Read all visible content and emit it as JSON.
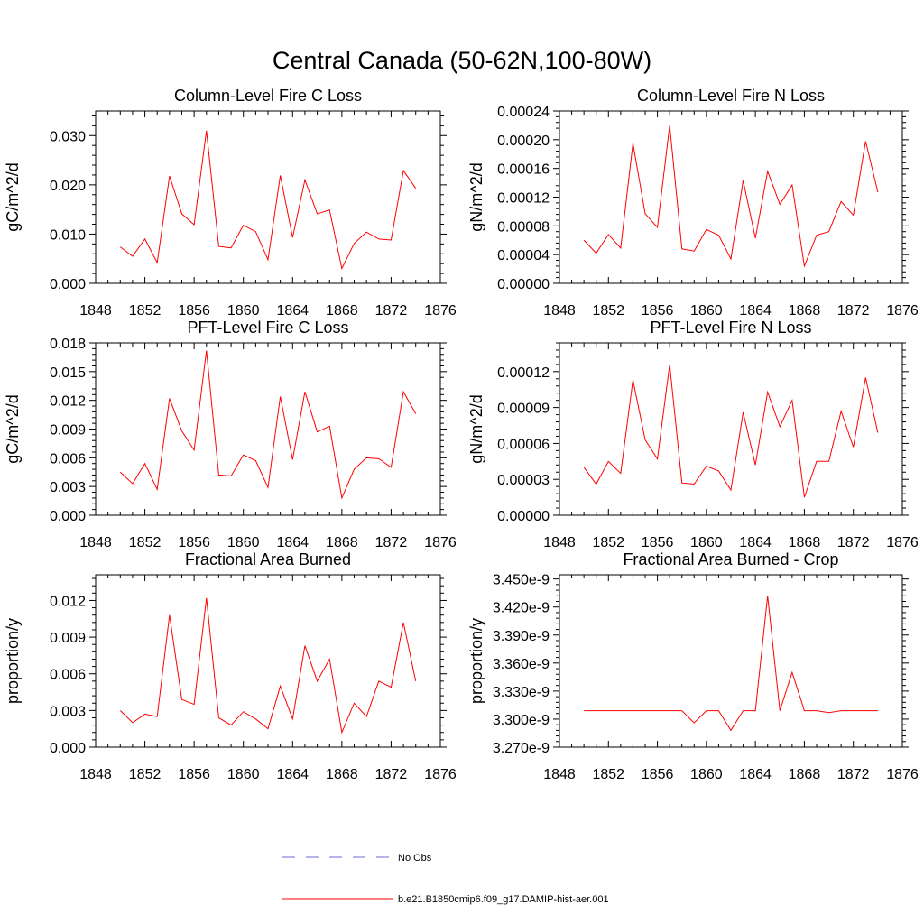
{
  "figure": {
    "title": "Central Canada (50-62N,100-80W)"
  },
  "colors": {
    "model": "#ff0000",
    "obs": "#6a6acd"
  },
  "legend": {
    "obs_label": "No Obs",
    "model_label": "b.e21.B1850cmip6.f09_g17.DAMIP-hist-aer.001"
  },
  "chart_data": [
    {
      "type": "line",
      "title": "Column-Level Fire C Loss",
      "ylabel": "gC/m^2/d",
      "xlim": [
        1848,
        1876
      ],
      "ylim": [
        0,
        0.035
      ],
      "xticks": [
        1848,
        1852,
        1856,
        1860,
        1864,
        1868,
        1872,
        1876
      ],
      "xtick_labels": [
        "1848",
        "1852",
        "1856",
        "1860",
        "1864",
        "1868",
        "1872",
        "1876"
      ],
      "yticks": [
        0,
        0.01,
        0.02,
        0.03
      ],
      "ytick_labels": [
        "0.000",
        "0.010",
        "0.020",
        "0.030"
      ],
      "x": [
        1850,
        1851,
        1852,
        1853,
        1854,
        1855,
        1856,
        1857,
        1858,
        1859,
        1860,
        1861,
        1862,
        1863,
        1864,
        1865,
        1866,
        1867,
        1868,
        1869,
        1870,
        1871,
        1872,
        1873,
        1874
      ],
      "series": [
        {
          "values": [
            0.0074,
            0.0055,
            0.009,
            0.0042,
            0.0218,
            0.0141,
            0.0119,
            0.031,
            0.0075,
            0.0072,
            0.0118,
            0.0105,
            0.0048,
            0.0219,
            0.0093,
            0.021,
            0.0141,
            0.0149,
            0.003,
            0.0081,
            0.0104,
            0.009,
            0.0088,
            0.0229,
            0.0193
          ]
        }
      ]
    },
    {
      "type": "line",
      "title": "Column-Level Fire N Loss",
      "ylabel": "gN/m^2/d",
      "xlim": [
        1848,
        1876
      ],
      "ylim": [
        0,
        0.00024
      ],
      "xticks": [
        1848,
        1852,
        1856,
        1860,
        1864,
        1868,
        1872,
        1876
      ],
      "xtick_labels": [
        "1848",
        "1852",
        "1856",
        "1860",
        "1864",
        "1868",
        "1872",
        "1876"
      ],
      "yticks": [
        0,
        4e-05,
        8e-05,
        0.00012,
        0.00016,
        0.0002,
        0.00024
      ],
      "ytick_labels": [
        "0.00000",
        "0.00004",
        "0.00008",
        "0.00012",
        "0.00016",
        "0.00020",
        "0.00024"
      ],
      "x": [
        1850,
        1851,
        1852,
        1853,
        1854,
        1855,
        1856,
        1857,
        1858,
        1859,
        1860,
        1861,
        1862,
        1863,
        1864,
        1865,
        1866,
        1867,
        1868,
        1869,
        1870,
        1871,
        1872,
        1873,
        1874
      ],
      "series": [
        {
          "values": [
            6e-05,
            4.2e-05,
            6.8e-05,
            4.9e-05,
            0.000195,
            9.7e-05,
            7.8e-05,
            0.00022,
            4.8e-05,
            4.5e-05,
            7.5e-05,
            6.7e-05,
            3.4e-05,
            0.000143,
            6.3e-05,
            0.000156,
            0.00011,
            0.000137,
            2.4e-05,
            6.7e-05,
            7.2e-05,
            0.000114,
            9.5e-05,
            0.000198,
            0.000127
          ]
        }
      ]
    },
    {
      "type": "line",
      "title": "PFT-Level Fire C Loss",
      "ylabel": "gC/m^2/d",
      "xlim": [
        1848,
        1876
      ],
      "ylim": [
        0,
        0.018
      ],
      "xticks": [
        1848,
        1852,
        1856,
        1860,
        1864,
        1868,
        1872,
        1876
      ],
      "xtick_labels": [
        "1848",
        "1852",
        "1856",
        "1860",
        "1864",
        "1868",
        "1872",
        "1876"
      ],
      "yticks": [
        0,
        0.003,
        0.006,
        0.009,
        0.012,
        0.015,
        0.018
      ],
      "ytick_labels": [
        "0.000",
        "0.003",
        "0.006",
        "0.009",
        "0.012",
        "0.015",
        "0.018"
      ],
      "x": [
        1850,
        1851,
        1852,
        1853,
        1854,
        1855,
        1856,
        1857,
        1858,
        1859,
        1860,
        1861,
        1862,
        1863,
        1864,
        1865,
        1866,
        1867,
        1868,
        1869,
        1870,
        1871,
        1872,
        1873,
        1874
      ],
      "series": [
        {
          "values": [
            0.0045,
            0.0033,
            0.0054,
            0.0027,
            0.0122,
            0.0088,
            0.0068,
            0.0172,
            0.0042,
            0.0041,
            0.0063,
            0.0057,
            0.0029,
            0.0124,
            0.0058,
            0.0129,
            0.0087,
            0.0093,
            0.0018,
            0.0048,
            0.006,
            0.0059,
            0.005,
            0.0129,
            0.0106
          ]
        }
      ]
    },
    {
      "type": "line",
      "title": "PFT-Level Fire N Loss",
      "ylabel": "gN/m^2/d",
      "xlim": [
        1848,
        1876
      ],
      "ylim": [
        0,
        0.000144
      ],
      "xticks": [
        1848,
        1852,
        1856,
        1860,
        1864,
        1868,
        1872,
        1876
      ],
      "xtick_labels": [
        "1848",
        "1852",
        "1856",
        "1860",
        "1864",
        "1868",
        "1872",
        "1876"
      ],
      "yticks": [
        0,
        3e-05,
        6e-05,
        9e-05,
        0.00012
      ],
      "ytick_labels": [
        "0.00000",
        "0.00003",
        "0.00006",
        "0.00009",
        "0.00012"
      ],
      "x": [
        1850,
        1851,
        1852,
        1853,
        1854,
        1855,
        1856,
        1857,
        1858,
        1859,
        1860,
        1861,
        1862,
        1863,
        1864,
        1865,
        1866,
        1867,
        1868,
        1869,
        1870,
        1871,
        1872,
        1873,
        1874
      ],
      "series": [
        {
          "values": [
            4e-05,
            2.6e-05,
            4.5e-05,
            3.5e-05,
            0.000113,
            6.3e-05,
            4.7e-05,
            0.000126,
            2.7e-05,
            2.6e-05,
            4.1e-05,
            3.7e-05,
            2.1e-05,
            8.6e-05,
            4.2e-05,
            0.000103,
            7.4e-05,
            9.6e-05,
            1.5e-05,
            4.5e-05,
            4.5e-05,
            8.7e-05,
            5.7e-05,
            0.000115,
            6.9e-05
          ]
        }
      ]
    },
    {
      "type": "line",
      "title": "Fractional Area Burned",
      "ylabel": "proportion/y",
      "xlim": [
        1848,
        1876
      ],
      "ylim": [
        0,
        0.0141
      ],
      "xticks": [
        1848,
        1852,
        1856,
        1860,
        1864,
        1868,
        1872,
        1876
      ],
      "xtick_labels": [
        "1848",
        "1852",
        "1856",
        "1860",
        "1864",
        "1868",
        "1872",
        "1876"
      ],
      "yticks": [
        0,
        0.003,
        0.006,
        0.009,
        0.012
      ],
      "ytick_labels": [
        "0.000",
        "0.003",
        "0.006",
        "0.009",
        "0.012"
      ],
      "x": [
        1850,
        1851,
        1852,
        1853,
        1854,
        1855,
        1856,
        1857,
        1858,
        1859,
        1860,
        1861,
        1862,
        1863,
        1864,
        1865,
        1866,
        1867,
        1868,
        1869,
        1870,
        1871,
        1872,
        1873,
        1874
      ],
      "series": [
        {
          "values": [
            0.003,
            0.002,
            0.0027,
            0.0025,
            0.0108,
            0.0039,
            0.0035,
            0.0122,
            0.0024,
            0.0018,
            0.0029,
            0.0023,
            0.0015,
            0.005,
            0.0023,
            0.0083,
            0.0054,
            0.0072,
            0.0012,
            0.0036,
            0.0025,
            0.0054,
            0.0049,
            0.0102,
            0.0054
          ]
        }
      ]
    },
    {
      "type": "line",
      "title": "Fractional Area Burned - Crop",
      "ylabel": "proportion/y",
      "xlim": [
        1848,
        1876
      ],
      "ylim": [
        3.27e-09,
        3.4545e-09
      ],
      "xticks": [
        1848,
        1852,
        1856,
        1860,
        1864,
        1868,
        1872,
        1876
      ],
      "xtick_labels": [
        "1848",
        "1852",
        "1856",
        "1860",
        "1864",
        "1868",
        "1872",
        "1876"
      ],
      "yticks": [
        3.27e-09,
        3.3e-09,
        3.33e-09,
        3.36e-09,
        3.39e-09,
        3.42e-09,
        3.45e-09
      ],
      "ytick_labels": [
        "3.270e-9",
        "3.300e-9",
        "3.330e-9",
        "3.360e-9",
        "3.390e-9",
        "3.420e-9",
        "3.450e-9"
      ],
      "x": [
        1850,
        1851,
        1852,
        1853,
        1854,
        1855,
        1856,
        1857,
        1858,
        1859,
        1860,
        1861,
        1862,
        1863,
        1864,
        1865,
        1866,
        1867,
        1868,
        1869,
        1870,
        1871,
        1872,
        1873,
        1874
      ],
      "series": [
        {
          "values": [
            3.309e-09,
            3.309e-09,
            3.309e-09,
            3.309e-09,
            3.309e-09,
            3.309e-09,
            3.309e-09,
            3.309e-09,
            3.309e-09,
            3.296e-09,
            3.309e-09,
            3.309e-09,
            3.288e-09,
            3.309e-09,
            3.309e-09,
            3.432e-09,
            3.309e-09,
            3.35e-09,
            3.309e-09,
            3.309e-09,
            3.307e-09,
            3.309e-09,
            3.309e-09,
            3.309e-09,
            3.309e-09
          ]
        }
      ]
    }
  ]
}
